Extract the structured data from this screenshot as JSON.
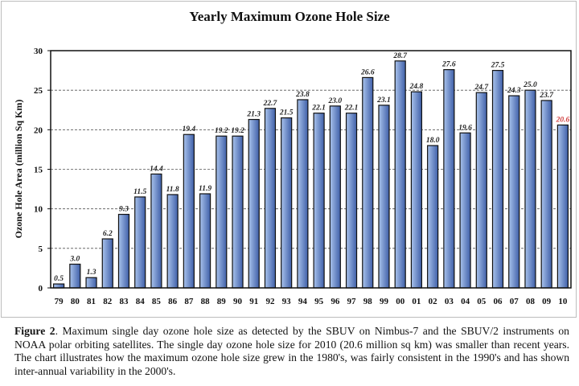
{
  "chart_data": {
    "type": "bar",
    "title": "Yearly Maximum Ozone Hole Size",
    "xlabel": "",
    "ylabel": "Ozone Hole Area (million Sq Km)",
    "ylim": [
      0,
      30
    ],
    "yticks": [
      0,
      5,
      10,
      15,
      20,
      25,
      30
    ],
    "grid": "horizontal dashed",
    "categories": [
      "79",
      "80",
      "81",
      "82",
      "83",
      "84",
      "85",
      "86",
      "87",
      "88",
      "89",
      "90",
      "91",
      "92",
      "93",
      "94",
      "95",
      "96",
      "97",
      "98",
      "99",
      "00",
      "01",
      "02",
      "03",
      "04",
      "05",
      "06",
      "07",
      "08",
      "09",
      "10"
    ],
    "values": [
      0.5,
      3.0,
      1.3,
      6.2,
      9.3,
      11.5,
      14.4,
      11.8,
      19.4,
      11.9,
      19.2,
      19.2,
      21.3,
      22.7,
      21.5,
      23.8,
      22.1,
      23.0,
      22.1,
      26.6,
      23.1,
      28.7,
      24.8,
      18.0,
      27.6,
      19.6,
      24.7,
      27.5,
      24.3,
      25.0,
      23.7,
      20.6
    ],
    "data_labels": [
      "0.5",
      "3.0",
      "1.3",
      "6.2",
      "9.3",
      "11.5",
      "14.4",
      "11.8",
      "19.4",
      "11.9",
      "19.2",
      "19.2",
      "21.3",
      "22.7",
      "21.5",
      "23.8",
      "22.1",
      "23.0",
      "22.1",
      "26.6",
      "23.1",
      "28.7",
      "24.8",
      "18.0",
      "27.6",
      "19.6",
      "24.7",
      "27.5",
      "24.3",
      "25.0",
      "23.7",
      "20.6"
    ],
    "colors": {
      "bar_light": "#a9c3ec",
      "bar_dark": "#3f5fa8",
      "label": "#222222",
      "highlight_label": "#d04040"
    },
    "highlight_index": 31
  },
  "caption": {
    "label": "Figure 2",
    "text": ". Maximum single day ozone hole size as detected by the SBUV on Nimbus-7 and the SBUV/2 instruments on NOAA polar orbiting satellites.  The single day ozone hole size for 2010 (20.6 million sq km) was smaller than recent years. The chart illustrates how the maximum ozone hole size grew in the 1980's, was fairly consistent in the 1990's and has shown inter-annual variability in the 2000's."
  }
}
